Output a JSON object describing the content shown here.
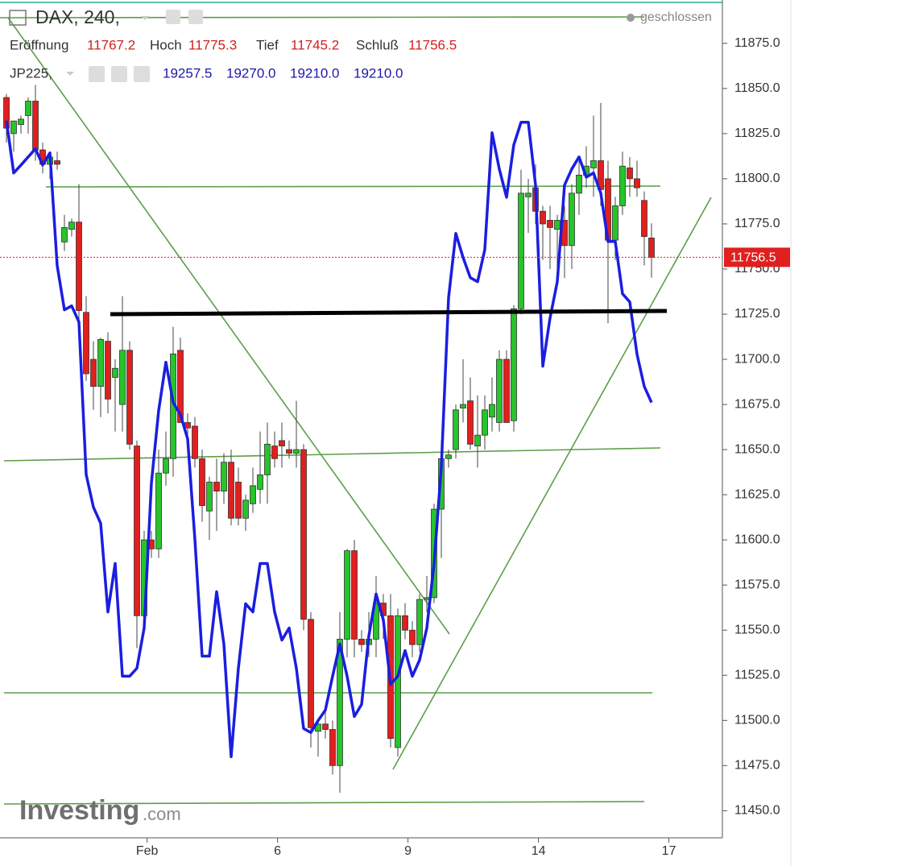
{
  "chart_data": {
    "type": "candlestick",
    "status": "geschlossen",
    "ohlc_labels": [
      "Eröffnung",
      "Hoch",
      "Tief",
      "Schluß"
    ],
    "ohlc_values": [
      "11767.2",
      "11775.3",
      "11745.2",
      "11756.5"
    ],
    "overlay_values": [
      "19257.5",
      "19270.0",
      "19210.0",
      "19210.0"
    ],
    "watermark": "Investing",
    "watermark_suffix": ".com",
    "last_price": 11756.5,
    "last_price_color": "#e0201e",
    "up_color": "#27c42a",
    "down_color": "#e0201e",
    "ylim": [
      11435,
      11899
    ],
    "yticks": [
      {
        "value": 11450,
        "label": "11450.0"
      },
      {
        "value": 11475,
        "label": "11475.0"
      },
      {
        "value": 11500,
        "label": "11500.0"
      },
      {
        "value": 11525,
        "label": "11525.0"
      },
      {
        "value": 11550,
        "label": "11550.0"
      },
      {
        "value": 11575,
        "label": "11575.0"
      },
      {
        "value": 11600,
        "label": "11600.0"
      },
      {
        "value": 11625,
        "label": "11625.0"
      },
      {
        "value": 11650,
        "label": "11650.0"
      },
      {
        "value": 11675,
        "label": "11675.0"
      },
      {
        "value": 11700,
        "label": "11700.0"
      },
      {
        "value": 11725,
        "label": "11725.0"
      },
      {
        "value": 11750,
        "label": "11750.0"
      },
      {
        "value": 11775,
        "label": "11775.0"
      },
      {
        "value": 11800,
        "label": "11800.0"
      },
      {
        "value": 11825,
        "label": "11825.0"
      },
      {
        "value": 11850,
        "label": "11850.0"
      },
      {
        "value": 11875,
        "label": "11875.0"
      }
    ],
    "xlim": [
      -0.89,
      98.78
    ],
    "xticks": [
      {
        "value": 19.4,
        "label": "Feb"
      },
      {
        "value": 37.4,
        "label": "6"
      },
      {
        "value": 55.4,
        "label": "9"
      },
      {
        "value": 73.4,
        "label": "14"
      },
      {
        "value": 91.4,
        "label": "17"
      }
    ],
    "x": [
      0,
      1,
      2,
      3,
      4,
      5,
      6,
      7,
      8,
      9,
      10,
      11,
      12,
      13,
      14,
      15,
      16,
      17,
      18,
      19,
      20,
      21,
      22,
      23,
      24,
      25,
      26,
      27,
      28,
      29,
      30,
      31,
      32,
      33,
      34,
      35,
      36,
      37,
      38,
      39,
      40,
      41,
      42,
      43,
      44,
      45,
      46,
      47,
      48,
      49,
      50,
      51,
      52,
      53,
      54,
      55,
      56,
      57,
      58,
      59,
      60,
      61,
      62,
      63,
      64,
      65,
      66,
      67,
      68,
      69,
      70,
      71,
      72,
      73,
      74,
      75,
      76,
      77,
      78,
      79,
      80,
      81,
      82,
      83,
      84,
      85,
      86,
      87,
      88,
      89
    ],
    "series": [
      {
        "name": "DAX, 240,",
        "open": [
          11845,
          11825,
          11830,
          11835,
          11843,
          11816,
          11808,
          11810,
          11765,
          11772,
          11776,
          11726,
          11700,
          11685,
          11710,
          11690,
          11675,
          11705,
          11652,
          11558,
          11600,
          11595,
          11637,
          11645,
          11705,
          11665,
          11663,
          11645,
          11616,
          11632,
          11627,
          11643,
          11632,
          11612,
          11620,
          11628,
          11636,
          11652,
          11655,
          11650,
          11648,
          11650,
          11556,
          11494,
          11498,
          11495,
          11475,
          11545,
          11594,
          11545,
          11542,
          11545,
          11565,
          11558,
          11485,
          11558,
          11550,
          11542,
          11567,
          11568,
          11617,
          11645,
          11650,
          11673,
          11677,
          11652,
          11658,
          11668,
          11665,
          11700,
          11666,
          11728,
          11790,
          11795,
          11782,
          11777,
          11772,
          11777,
          11763,
          11792,
          11802,
          11806,
          11810,
          11800,
          11766,
          11785,
          11806,
          11800,
          11788,
          11767.2
        ],
        "high": [
          11847,
          11832,
          11835,
          11845,
          11852,
          11820,
          11815,
          11815,
          11780,
          11778,
          11797,
          11735,
          11710,
          11712,
          11715,
          11700,
          11735,
          11710,
          11655,
          11605,
          11605,
          11650,
          11660,
          11718,
          11712,
          11670,
          11668,
          11650,
          11635,
          11645,
          11648,
          11650,
          11640,
          11625,
          11640,
          11660,
          11665,
          11660,
          11665,
          11655,
          11677,
          11653,
          11560,
          11500,
          11505,
          11500,
          11560,
          11595,
          11600,
          11550,
          11560,
          11580,
          11570,
          11570,
          11562,
          11565,
          11555,
          11570,
          11580,
          11620,
          11655,
          11650,
          11675,
          11700,
          11690,
          11680,
          11680,
          11690,
          11705,
          11705,
          11730,
          11805,
          11800,
          11808,
          11785,
          11785,
          11780,
          11785,
          11797,
          11810,
          11818,
          11835,
          11842,
          11810,
          11790,
          11815,
          11812,
          11810,
          11793,
          11775.3
        ],
        "low": [
          11820,
          11815,
          11825,
          11825,
          11810,
          11803,
          11800,
          11805,
          11760,
          11768,
          11720,
          11688,
          11672,
          11668,
          11670,
          11660,
          11660,
          11650,
          11540,
          11550,
          11590,
          11590,
          11630,
          11635,
          11665,
          11655,
          11640,
          11610,
          11600,
          11605,
          11620,
          11608,
          11608,
          11605,
          11615,
          11620,
          11620,
          11640,
          11640,
          11645,
          11640,
          11550,
          11485,
          11480,
          11490,
          11470,
          11460,
          11535,
          11535,
          11538,
          11535,
          11535,
          11545,
          11485,
          11480,
          11545,
          11535,
          11538,
          11560,
          11565,
          11590,
          11640,
          11645,
          11665,
          11650,
          11640,
          11650,
          11660,
          11660,
          11665,
          11660,
          11725,
          11770,
          11775,
          11755,
          11750,
          11745,
          11745,
          11750,
          11780,
          11795,
          11790,
          11785,
          11720,
          11755,
          11780,
          11790,
          11790,
          11752,
          11745.2
        ],
        "close": [
          11828,
          11832,
          11833,
          11843,
          11816,
          11808,
          11812,
          11808,
          11773,
          11776,
          11727,
          11692,
          11685,
          11711,
          11678,
          11695,
          11705,
          11653,
          11558,
          11600,
          11595,
          11637,
          11645,
          11703,
          11665,
          11662,
          11645,
          11619,
          11632,
          11627,
          11643,
          11612,
          11612,
          11622,
          11630,
          11636,
          11653,
          11645,
          11652,
          11648,
          11650,
          11556,
          11496,
          11498,
          11495,
          11475,
          11545,
          11594,
          11545,
          11542,
          11545,
          11565,
          11558,
          11490,
          11558,
          11550,
          11542,
          11567,
          11568,
          11617,
          11645,
          11647,
          11672,
          11675,
          11653,
          11658,
          11672,
          11675,
          11700,
          11665,
          11728,
          11792,
          11792,
          11782,
          11775,
          11773,
          11777,
          11763,
          11792,
          11802,
          11807,
          11810,
          11794,
          11766,
          11785,
          11807,
          11800,
          11795,
          11768,
          11756.5
        ]
      },
      {
        "name": "JP225,",
        "color": "#1a1ee0",
        "values": [
          11832.2,
          11803.2,
          11807.6,
          11812.1,
          11816.6,
          11807.6,
          11814.3,
          11751.9,
          11727.4,
          11729.6,
          11720.7,
          11636.2,
          11618.1,
          11609.2,
          11560.1,
          11586.9,
          11524.5,
          11524.5,
          11528.9,
          11551.2,
          11631.5,
          11671.6,
          11698.4,
          11676.1,
          11669.4,
          11656,
          11600.3,
          11535.6,
          11535.6,
          11571.3,
          11542.3,
          11479.9,
          11528.9,
          11564.6,
          11560.1,
          11586.9,
          11586.9,
          11560.1,
          11544.5,
          11551.2,
          11528.9,
          11495.5,
          11493.3,
          11499.9,
          11505.7,
          11524.5,
          11542.3,
          11524.5,
          11502.2,
          11508.9,
          11546.8,
          11570,
          11555.7,
          11520,
          11524.5,
          11538.7,
          11524.5,
          11533.4,
          11551.2,
          11586.9,
          11640.4,
          11734.1,
          11769.7,
          11756.4,
          11745.2,
          11743,
          11760.8,
          11825.5,
          11805.4,
          11789.8,
          11818.8,
          11831.3,
          11831.3,
          11796.5,
          11696.2,
          11722.9,
          11743,
          11796.5,
          11805.4,
          11812.1,
          11800.9,
          11803.2,
          11792,
          11765.3,
          11765.3,
          11736.3,
          11731.8,
          11702.8,
          11685,
          11676.1
        ]
      }
    ]
  }
}
